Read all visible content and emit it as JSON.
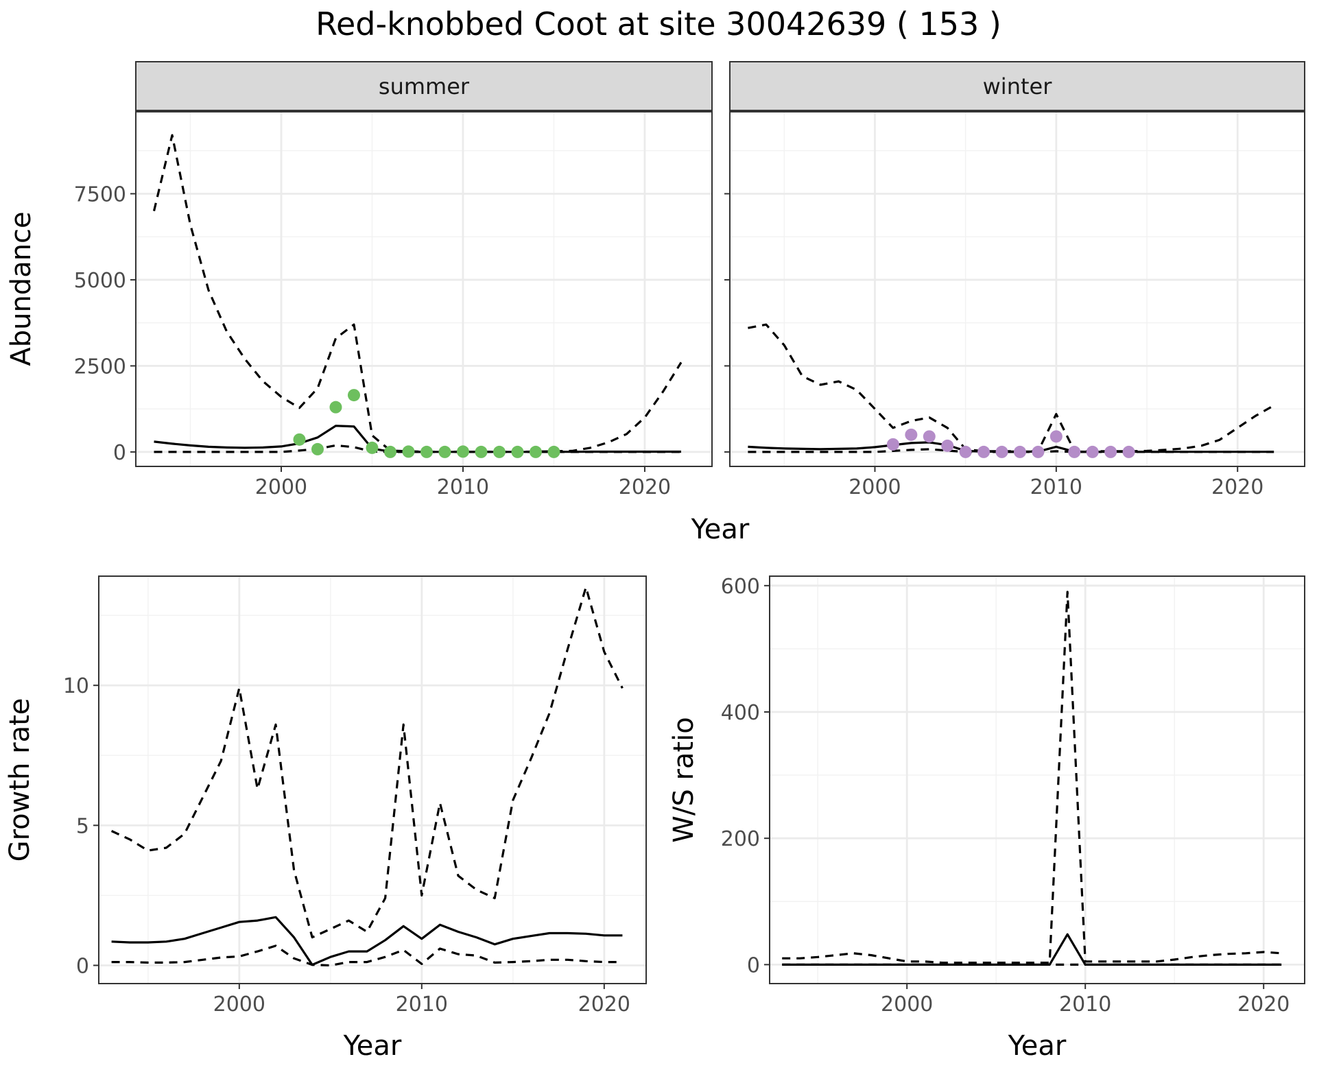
{
  "title": "Red-knobbed Coot at site 30042639 ( 153 )",
  "colors": {
    "summer_points": "#6DBF5E",
    "winter_points": "#B48CC8",
    "line": "#000000",
    "grid": "#EBEBEB",
    "strip": "#D9D9D9"
  },
  "chart_data": [
    {
      "type": "line",
      "facet": "summer",
      "title": "summer",
      "xlabel": "Year",
      "ylabel": "Abundance",
      "xlim": [
        1992,
        2023.7
      ],
      "ylim": [
        -420,
        9900
      ],
      "x_ticks": [
        2000,
        2010,
        2020
      ],
      "y_ticks": [
        0,
        2500,
        5000,
        7500
      ],
      "y_tick_labels": [
        "0",
        "2500",
        "5000",
        "7500"
      ],
      "grid": true,
      "x": [
        1993,
        1994,
        1995,
        1996,
        1997,
        1998,
        1999,
        2000,
        2001,
        2002,
        2003,
        2004,
        2005,
        2006,
        2007,
        2008,
        2009,
        2010,
        2011,
        2012,
        2013,
        2014,
        2015,
        2016,
        2017,
        2018,
        2019,
        2020,
        2021,
        2022
      ],
      "series": [
        {
          "style": "dashed",
          "values": [
            7000,
            9200,
            6600,
            4700,
            3500,
            2700,
            2050,
            1600,
            1280,
            1850,
            3300,
            3700,
            480,
            40,
            20,
            5,
            5,
            5,
            5,
            5,
            5,
            10,
            20,
            30,
            120,
            280,
            520,
            1000,
            1750,
            2600
          ]
        },
        {
          "style": "solid",
          "values": [
            300,
            240,
            190,
            150,
            130,
            120,
            130,
            160,
            250,
            420,
            760,
            740,
            100,
            10,
            5,
            2,
            2,
            2,
            2,
            2,
            2,
            3,
            5,
            5,
            8,
            8,
            8,
            8,
            8,
            8
          ]
        },
        {
          "style": "dashed",
          "values": [
            0,
            0,
            0,
            0,
            0,
            0,
            0,
            0,
            40,
            90,
            190,
            140,
            10,
            0,
            0,
            0,
            0,
            0,
            0,
            0,
            0,
            0,
            0,
            0,
            0,
            0,
            0,
            0,
            0,
            0
          ]
        }
      ],
      "points": {
        "x": [
          2001,
          2002,
          2003,
          2004,
          2005,
          2006,
          2007,
          2008,
          2009,
          2010,
          2011,
          2012,
          2013,
          2014,
          2015
        ],
        "y": [
          360,
          80,
          1300,
          1650,
          120,
          0,
          10,
          0,
          0,
          10,
          0,
          0,
          0,
          0,
          0
        ]
      }
    },
    {
      "type": "line",
      "facet": "winter",
      "title": "winter",
      "xlabel": "Year",
      "ylabel": "Abundance",
      "xlim": [
        1992,
        2023.7
      ],
      "ylim": [
        -420,
        9900
      ],
      "x_ticks": [
        2000,
        2010,
        2020
      ],
      "y_ticks": [
        0,
        2500,
        5000,
        7500
      ],
      "grid": true,
      "x": [
        1993,
        1994,
        1995,
        1996,
        1997,
        1998,
        1999,
        2000,
        2001,
        2002,
        2003,
        2004,
        2005,
        2006,
        2007,
        2008,
        2009,
        2010,
        2011,
        2012,
        2013,
        2014,
        2015,
        2016,
        2017,
        2018,
        2019,
        2020,
        2021,
        2022
      ],
      "series": [
        {
          "style": "dashed",
          "values": [
            3600,
            3700,
            3100,
            2200,
            1950,
            2050,
            1800,
            1250,
            700,
            900,
            1000,
            700,
            80,
            20,
            20,
            20,
            20,
            1100,
            30,
            20,
            20,
            20,
            30,
            60,
            100,
            180,
            350,
            700,
            1050,
            1350
          ]
        },
        {
          "style": "solid",
          "values": [
            150,
            120,
            100,
            90,
            80,
            90,
            100,
            140,
            200,
            260,
            280,
            200,
            30,
            10,
            10,
            10,
            10,
            150,
            10,
            5,
            5,
            5,
            5,
            5,
            5,
            5,
            5,
            5,
            5,
            5
          ]
        },
        {
          "style": "dashed",
          "values": [
            0,
            0,
            0,
            0,
            0,
            0,
            0,
            0,
            30,
            60,
            80,
            40,
            0,
            0,
            0,
            0,
            0,
            20,
            0,
            0,
            0,
            0,
            0,
            0,
            0,
            0,
            0,
            0,
            0,
            0
          ]
        }
      ],
      "points": {
        "x": [
          2001,
          2002,
          2003,
          2004,
          2005,
          2006,
          2007,
          2008,
          2009,
          2010,
          2011,
          2012,
          2013,
          2014
        ],
        "y": [
          220,
          500,
          450,
          180,
          0,
          0,
          0,
          0,
          0,
          450,
          0,
          0,
          0,
          0
        ]
      }
    },
    {
      "type": "line",
      "xlabel": "Year",
      "ylabel": "Growth rate",
      "xlim": [
        1992.3,
        2022.3
      ],
      "ylim": [
        -0.65,
        13.9
      ],
      "x_ticks": [
        2000,
        2010,
        2020
      ],
      "y_ticks": [
        0,
        5,
        10
      ],
      "grid": true,
      "x": [
        1993,
        1994,
        1995,
        1996,
        1997,
        1998,
        1999,
        2000,
        2001,
        2002,
        2003,
        2004,
        2005,
        2006,
        2007,
        2008,
        2009,
        2010,
        2011,
        2012,
        2013,
        2014,
        2015,
        2016,
        2017,
        2018,
        2019,
        2020,
        2021
      ],
      "series": [
        {
          "style": "dashed",
          "values": [
            4.8,
            4.5,
            4.1,
            4.2,
            4.7,
            6.0,
            7.3,
            9.9,
            6.3,
            8.6,
            3.4,
            1.0,
            1.3,
            1.6,
            1.2,
            2.4,
            8.6,
            2.5,
            5.8,
            3.2,
            2.7,
            2.4,
            5.9,
            7.4,
            9.0,
            11.3,
            13.5,
            11.2,
            9.9
          ]
        },
        {
          "style": "solid",
          "values": [
            0.85,
            0.82,
            0.82,
            0.85,
            0.95,
            1.15,
            1.35,
            1.55,
            1.6,
            1.72,
            1.0,
            0.02,
            0.3,
            0.5,
            0.5,
            0.9,
            1.4,
            0.95,
            1.45,
            1.2,
            1.0,
            0.75,
            0.95,
            1.05,
            1.15,
            1.15,
            1.13,
            1.07,
            1.07
          ]
        },
        {
          "style": "dashed",
          "values": [
            0.12,
            0.12,
            0.1,
            0.1,
            0.12,
            0.2,
            0.28,
            0.32,
            0.5,
            0.7,
            0.25,
            0.02,
            0.0,
            0.12,
            0.12,
            0.3,
            0.55,
            0.05,
            0.6,
            0.4,
            0.35,
            0.1,
            0.12,
            0.15,
            0.2,
            0.2,
            0.15,
            0.12,
            0.12
          ]
        }
      ]
    },
    {
      "type": "line",
      "xlabel": "Year",
      "ylabel": "W/S ratio",
      "xlim": [
        1992.3,
        2022.3
      ],
      "ylim": [
        -30,
        615
      ],
      "x_ticks": [
        2000,
        2010,
        2020
      ],
      "y_ticks": [
        0,
        200,
        400,
        600
      ],
      "grid": true,
      "x": [
        1993,
        1994,
        1995,
        1996,
        1997,
        1998,
        1999,
        2000,
        2001,
        2002,
        2003,
        2004,
        2005,
        2006,
        2007,
        2008,
        2009,
        2010,
        2011,
        2012,
        2013,
        2014,
        2015,
        2016,
        2017,
        2018,
        2019,
        2020,
        2021
      ],
      "series": [
        {
          "style": "dashed",
          "values": [
            10,
            10,
            12,
            15,
            18,
            15,
            10,
            5,
            5,
            3,
            3,
            3,
            3,
            3,
            3,
            3,
            590,
            5,
            5,
            5,
            5,
            5,
            8,
            12,
            15,
            17,
            18,
            20,
            18
          ]
        },
        {
          "style": "solid",
          "values": [
            0,
            0,
            0,
            0,
            0,
            0,
            0,
            0,
            0,
            0,
            0,
            0,
            0,
            0,
            0,
            0,
            48,
            0,
            0,
            0,
            0,
            0,
            0,
            0,
            0,
            0,
            0,
            0,
            0
          ]
        },
        {
          "style": "dashed",
          "values": [
            0,
            0,
            0,
            0,
            0,
            0,
            0,
            0,
            0,
            0,
            0,
            0,
            0,
            0,
            0,
            0,
            0,
            0,
            0,
            0,
            0,
            0,
            0,
            0,
            0,
            0,
            0,
            0,
            0
          ]
        }
      ]
    }
  ]
}
